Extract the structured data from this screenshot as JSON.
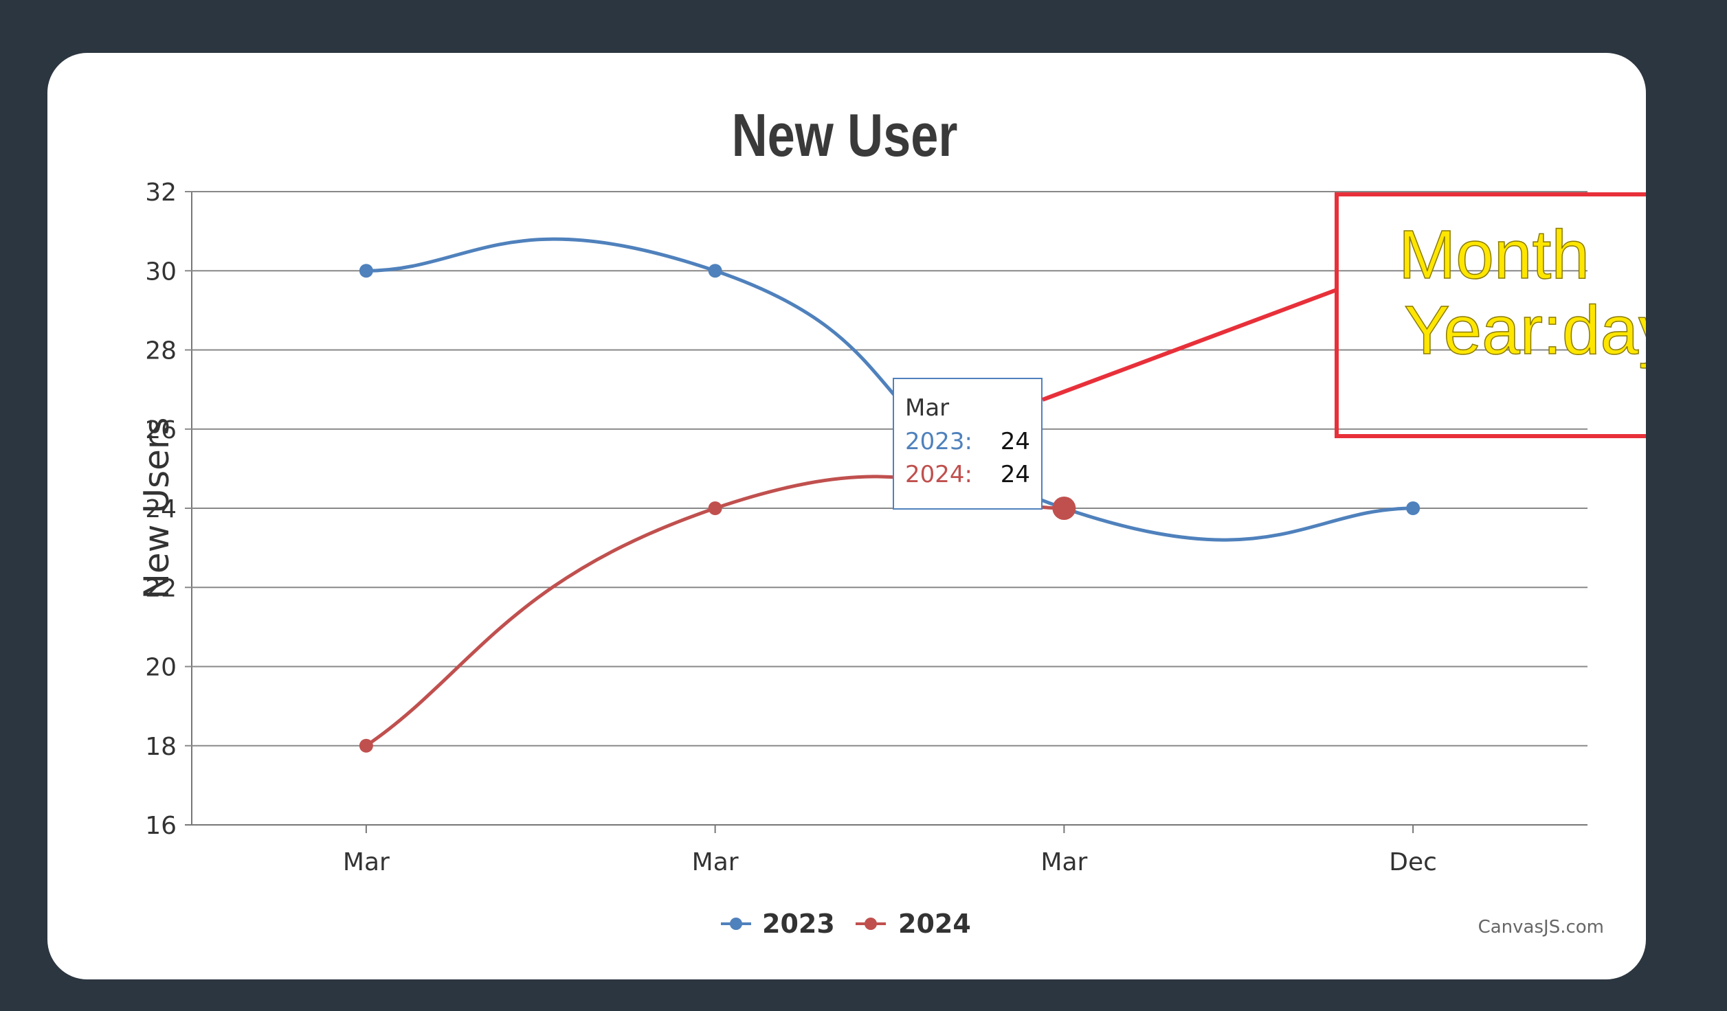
{
  "colors": {
    "background": "#2c3640",
    "card": "#ffffff",
    "series_2023": "#4f81bc",
    "series_2024": "#c0504e",
    "annotation": "#e8303a",
    "annotation_text": "#ffe600"
  },
  "chart_data": {
    "type": "line",
    "title": "New User",
    "xlabel": "",
    "ylabel": "New Users",
    "categories": [
      "Mar",
      "Mar",
      "Mar",
      "Dec"
    ],
    "ylim": [
      16,
      32
    ],
    "yticks": [
      "16",
      "18",
      "20",
      "22",
      "24",
      "26",
      "28",
      "30",
      "32"
    ],
    "grid": true,
    "legend_position": "bottom-center",
    "series": [
      {
        "name": "2023",
        "values": [
          30,
          30,
          24,
          24
        ]
      },
      {
        "name": "2024",
        "values": [
          18,
          24,
          24,
          null
        ]
      }
    ],
    "tooltip": {
      "header": "Mar",
      "rows": [
        {
          "label": "2023:",
          "value": "24"
        },
        {
          "label": "2024:",
          "value": "24"
        }
      ]
    },
    "credit": "CanvasJS.com"
  },
  "annotation": {
    "line1": "Month",
    "line2": "Year:day"
  }
}
